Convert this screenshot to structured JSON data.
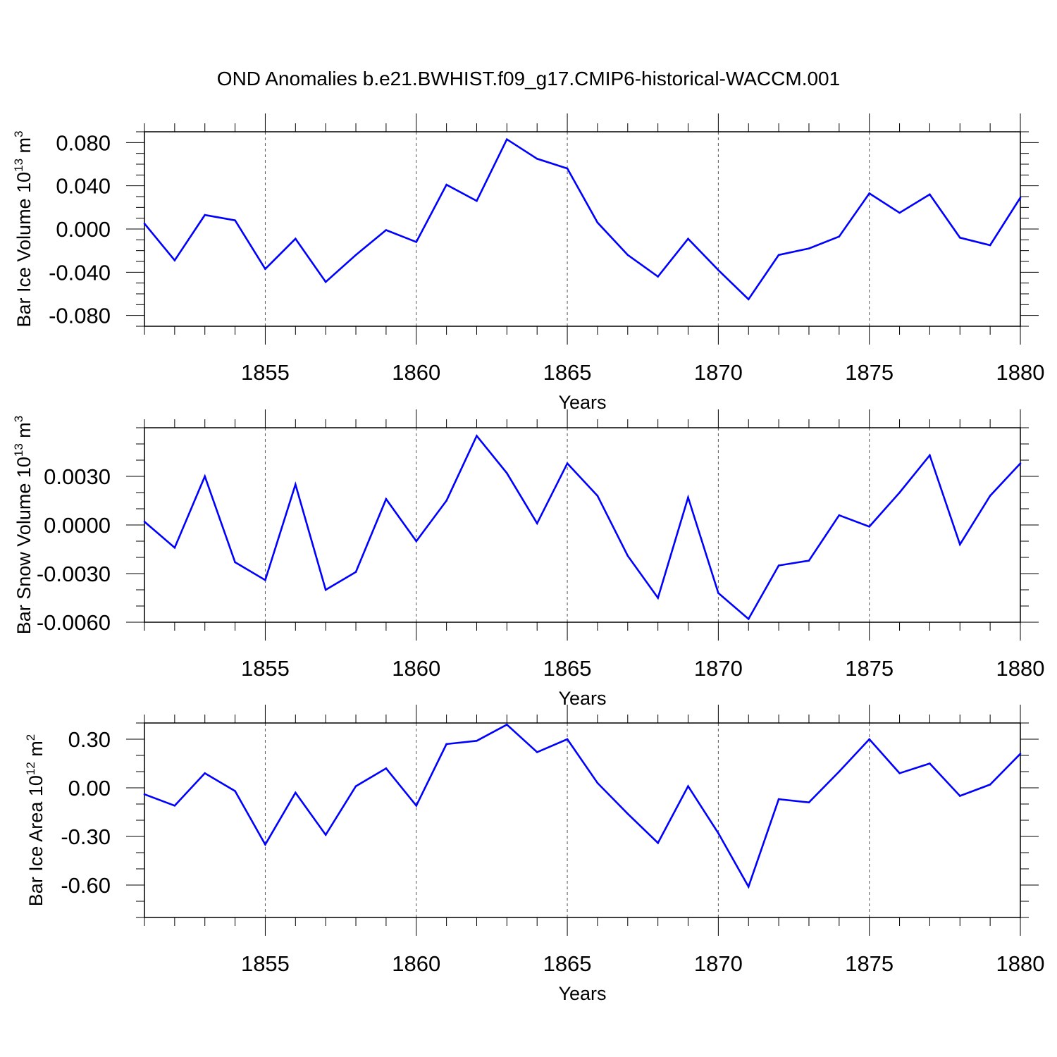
{
  "title": "OND Anomalies b.e21.BWHIST.f09_g17.CMIP6-historical-WACCM.001",
  "colors": {
    "line": "#0000ff",
    "axis": "#000000",
    "grid": "#555555"
  },
  "chart_data": [
    {
      "type": "line",
      "ylabel": "Bar Ice Volume 10",
      "ylabel_exp": "13",
      "ylabel_unit": " m",
      "ylabel_unit_exp": "3",
      "xlabel": "Years",
      "xlim": [
        1851,
        1880
      ],
      "ylim": [
        -0.09,
        0.09
      ],
      "yticks": [
        -0.08,
        -0.04,
        0.0,
        0.04,
        0.08
      ],
      "ytick_labels": [
        "-0.080",
        "-0.040",
        "0.000",
        "0.040",
        "0.080"
      ],
      "y_minor_step": 0.01,
      "xticks": [
        1855,
        1860,
        1865,
        1870,
        1875,
        1880
      ],
      "xtick_labels": [
        "1855",
        "1860",
        "1865",
        "1870",
        "1875",
        "1880"
      ],
      "grid_x": true,
      "x": [
        1851,
        1852,
        1853,
        1854,
        1855,
        1856,
        1857,
        1858,
        1859,
        1860,
        1861,
        1862,
        1863,
        1864,
        1865,
        1866,
        1867,
        1868,
        1869,
        1870,
        1871,
        1872,
        1873,
        1874,
        1875,
        1876,
        1877,
        1878,
        1879,
        1880
      ],
      "series": [
        {
          "values": [
            0.005,
            -0.029,
            0.013,
            0.008,
            -0.037,
            -0.009,
            -0.049,
            -0.024,
            -0.001,
            -0.012,
            0.041,
            0.026,
            0.083,
            0.065,
            0.056,
            0.006,
            -0.024,
            -0.044,
            -0.009,
            -0.038,
            -0.065,
            -0.024,
            -0.018,
            -0.007,
            0.033,
            0.015,
            0.032,
            -0.008,
            -0.015,
            0.029
          ]
        }
      ]
    },
    {
      "type": "line",
      "ylabel": "Bar Snow Volume 10",
      "ylabel_exp": "13",
      "ylabel_unit": " m",
      "ylabel_unit_exp": "3",
      "xlabel": "Years",
      "xlim": [
        1851,
        1880
      ],
      "ylim": [
        -0.006,
        0.006
      ],
      "yticks": [
        -0.006,
        -0.003,
        0.0,
        0.003
      ],
      "ytick_labels": [
        "-0.0060",
        "-0.0030",
        "0.0000",
        "0.0030"
      ],
      "y_minor_step": 0.001,
      "xticks": [
        1855,
        1860,
        1865,
        1870,
        1875,
        1880
      ],
      "xtick_labels": [
        "1855",
        "1860",
        "1865",
        "1870",
        "1875",
        "1880"
      ],
      "grid_x": true,
      "x": [
        1851,
        1852,
        1853,
        1854,
        1855,
        1856,
        1857,
        1858,
        1859,
        1860,
        1861,
        1862,
        1863,
        1864,
        1865,
        1866,
        1867,
        1868,
        1869,
        1870,
        1871,
        1872,
        1873,
        1874,
        1875,
        1876,
        1877,
        1878,
        1879,
        1880
      ],
      "series": [
        {
          "values": [
            0.0002,
            -0.0014,
            0.003,
            -0.0023,
            -0.0034,
            0.0025,
            -0.004,
            -0.0029,
            0.0016,
            -0.001,
            0.0015,
            0.0055,
            0.0032,
            0.0001,
            0.0038,
            0.0018,
            -0.0019,
            -0.0045,
            0.0017,
            -0.0042,
            -0.0058,
            -0.0025,
            -0.0022,
            0.0006,
            -0.0001,
            0.002,
            0.0043,
            -0.0012,
            0.0018,
            0.0038
          ]
        }
      ]
    },
    {
      "type": "line",
      "ylabel": "Bar Ice Area 10",
      "ylabel_exp": "12",
      "ylabel_unit": " m",
      "ylabel_unit_exp": "2",
      "xlabel": "Years",
      "xlim": [
        1851,
        1880
      ],
      "ylim": [
        -0.8,
        0.4
      ],
      "yticks": [
        -0.6,
        -0.3,
        0.0,
        0.3
      ],
      "ytick_labels": [
        "-0.60",
        "-0.30",
        "0.00",
        "0.30"
      ],
      "y_minor_step": 0.1,
      "xticks": [
        1855,
        1860,
        1865,
        1870,
        1875,
        1880
      ],
      "xtick_labels": [
        "1855",
        "1860",
        "1865",
        "1870",
        "1875",
        "1880"
      ],
      "grid_x": true,
      "x": [
        1851,
        1852,
        1853,
        1854,
        1855,
        1856,
        1857,
        1858,
        1859,
        1860,
        1861,
        1862,
        1863,
        1864,
        1865,
        1866,
        1867,
        1868,
        1869,
        1870,
        1871,
        1872,
        1873,
        1874,
        1875,
        1876,
        1877,
        1878,
        1879,
        1880
      ],
      "series": [
        {
          "values": [
            -0.04,
            -0.11,
            0.09,
            -0.02,
            -0.35,
            -0.03,
            -0.29,
            0.01,
            0.12,
            -0.11,
            0.27,
            0.29,
            0.39,
            0.22,
            0.3,
            0.03,
            -0.16,
            -0.34,
            0.01,
            -0.28,
            -0.61,
            -0.07,
            -0.09,
            0.1,
            0.3,
            0.09,
            0.15,
            -0.05,
            0.02,
            0.21
          ]
        }
      ]
    }
  ]
}
